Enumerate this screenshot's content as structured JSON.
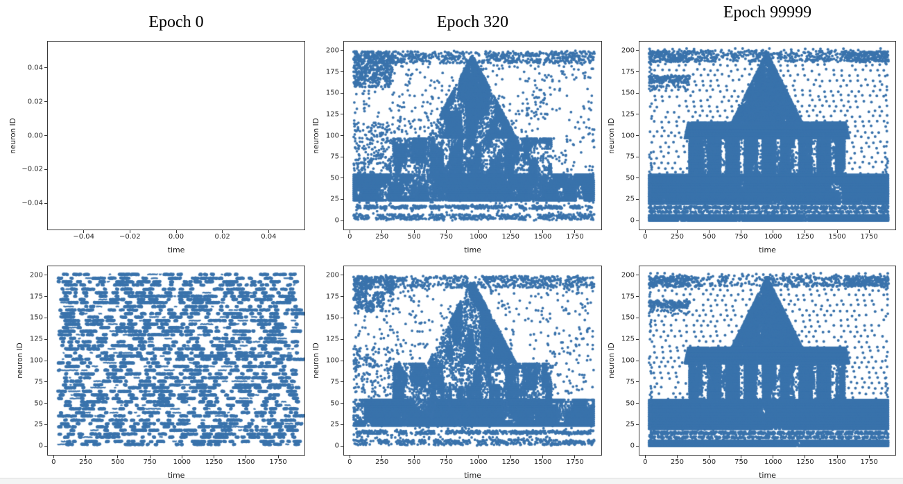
{
  "figure": {
    "background": "#ffffff",
    "spine_color": "#3a3a3a",
    "tick_color": "#262626",
    "title_color": "#000000",
    "bottom_bar": {
      "fill": "#f3f4f4",
      "border": "#dcdddd"
    }
  },
  "chart_data": {
    "type": "scatter",
    "figure_kind": "spiking-network raster plots (neuron spikes over time)",
    "grid": {
      "rows": 2,
      "cols": 3
    },
    "column_titles": [
      "Epoch 0",
      "Epoch 320",
      "Epoch 99999"
    ],
    "point_color": "#3a73ac",
    "x_axis_label": "time",
    "y_axis_label": "neuron ID",
    "subplots": [
      {
        "id": "row1-col1",
        "title": "Epoch 0",
        "xlabel": "time",
        "ylabel": "neuron ID",
        "xlim": [
          -0.0555,
          0.0555
        ],
        "ylim": [
          -0.0555,
          0.0555
        ],
        "xticks": [
          {
            "v": -0.04,
            "label": "−0.04"
          },
          {
            "v": -0.02,
            "label": "−0.02"
          },
          {
            "v": 0,
            "label": "0.00"
          },
          {
            "v": 0.02,
            "label": "0.02"
          },
          {
            "v": 0.04,
            "label": "0.04"
          }
        ],
        "yticks": [
          {
            "v": 0.04,
            "label": "0.04"
          },
          {
            "v": 0.02,
            "label": "0.02"
          },
          {
            "v": 0,
            "label": "0.00"
          },
          {
            "v": -0.02,
            "label": "−0.02"
          },
          {
            "v": -0.04,
            "label": "−0.04"
          }
        ],
        "pattern": "empty",
        "seed": 1,
        "content": "empty axes, no spikes plotted (default matplotlib limits)"
      },
      {
        "id": "row1-col2",
        "title": "Epoch 320",
        "xlabel": "time",
        "ylabel": "neuron ID",
        "xlim": [
          -45,
          1955
        ],
        "ylim": [
          -10.5,
          210.5
        ],
        "xticks": [
          {
            "v": 0,
            "label": "0"
          },
          {
            "v": 250,
            "label": "250"
          },
          {
            "v": 500,
            "label": "500"
          },
          {
            "v": 750,
            "label": "750"
          },
          {
            "v": 1000,
            "label": "1000"
          },
          {
            "v": 1250,
            "label": "1250"
          },
          {
            "v": 1500,
            "label": "1500"
          },
          {
            "v": 1750,
            "label": "1750"
          }
        ],
        "yticks": [
          {
            "v": 0,
            "label": "0"
          },
          {
            "v": 25,
            "label": "25"
          },
          {
            "v": 50,
            "label": "50"
          },
          {
            "v": 75,
            "label": "75"
          },
          {
            "v": 100,
            "label": "100"
          },
          {
            "v": 125,
            "label": "125"
          },
          {
            "v": 150,
            "label": "150"
          },
          {
            "v": 175,
            "label": "175"
          },
          {
            "v": 200,
            "label": "200"
          }
        ],
        "pattern": "temple-soft",
        "seed": 7,
        "bg_points": 1300,
        "content": "diffuse spike cloud: triangular temple silhouette emerging, dense base band, noisy background"
      },
      {
        "id": "row1-col3",
        "title": "Epoch 99999",
        "xlabel": "time",
        "ylabel": "neuron ID",
        "xlim": [
          -45,
          1955
        ],
        "ylim": [
          -10.5,
          210.5
        ],
        "xticks": [
          {
            "v": 0,
            "label": "0"
          },
          {
            "v": 250,
            "label": "250"
          },
          {
            "v": 500,
            "label": "500"
          },
          {
            "v": 750,
            "label": "750"
          },
          {
            "v": 1000,
            "label": "1000"
          },
          {
            "v": 1250,
            "label": "1250"
          },
          {
            "v": 1500,
            "label": "1500"
          },
          {
            "v": 1750,
            "label": "1750"
          }
        ],
        "yticks": [
          {
            "v": 0,
            "label": "0"
          },
          {
            "v": 25,
            "label": "25"
          },
          {
            "v": 50,
            "label": "50"
          },
          {
            "v": 75,
            "label": "75"
          },
          {
            "v": 100,
            "label": "100"
          },
          {
            "v": 125,
            "label": "125"
          },
          {
            "v": 150,
            "label": "150"
          },
          {
            "v": 175,
            "label": "175"
          },
          {
            "v": 200,
            "label": "200"
          }
        ],
        "pattern": "temple-sharp",
        "seed": 11,
        "bg_density": 0.84,
        "content": "sharp temple image: dome with finial, eave band, columns, dense base, regular dotted background"
      },
      {
        "id": "row2-col1",
        "title": "",
        "xlabel": "time",
        "ylabel": "neuron ID",
        "xlim": [
          -45,
          1955
        ],
        "ylim": [
          -10.5,
          210.5
        ],
        "xticks": [
          {
            "v": 0,
            "label": "0"
          },
          {
            "v": 250,
            "label": "250"
          },
          {
            "v": 500,
            "label": "500"
          },
          {
            "v": 750,
            "label": "750"
          },
          {
            "v": 1000,
            "label": "1000"
          },
          {
            "v": 1250,
            "label": "1250"
          },
          {
            "v": 1500,
            "label": "1500"
          },
          {
            "v": 1750,
            "label": "1750"
          }
        ],
        "yticks": [
          {
            "v": 0,
            "label": "0"
          },
          {
            "v": 25,
            "label": "25"
          },
          {
            "v": 50,
            "label": "50"
          },
          {
            "v": 75,
            "label": "75"
          },
          {
            "v": 100,
            "label": "100"
          },
          {
            "v": 125,
            "label": "125"
          },
          {
            "v": 150,
            "label": "150"
          },
          {
            "v": 175,
            "label": "175"
          },
          {
            "v": 200,
            "label": "200"
          }
        ],
        "pattern": "random-rows",
        "seed": 3,
        "content": "uniform random spike trains: horizontal dash segments across all ~200 neurons"
      },
      {
        "id": "row2-col2",
        "title": "",
        "xlabel": "time",
        "ylabel": "neuron ID",
        "xlim": [
          -45,
          1955
        ],
        "ylim": [
          -10.5,
          210.5
        ],
        "xticks": [
          {
            "v": 0,
            "label": "0"
          },
          {
            "v": 250,
            "label": "250"
          },
          {
            "v": 500,
            "label": "500"
          },
          {
            "v": 750,
            "label": "750"
          },
          {
            "v": 1000,
            "label": "1000"
          },
          {
            "v": 1250,
            "label": "1250"
          },
          {
            "v": 1500,
            "label": "1500"
          },
          {
            "v": 1750,
            "label": "1750"
          }
        ],
        "yticks": [
          {
            "v": 0,
            "label": "0"
          },
          {
            "v": 25,
            "label": "25"
          },
          {
            "v": 50,
            "label": "50"
          },
          {
            "v": 75,
            "label": "75"
          },
          {
            "v": 100,
            "label": "100"
          },
          {
            "v": 125,
            "label": "125"
          },
          {
            "v": 150,
            "label": "150"
          },
          {
            "v": 175,
            "label": "175"
          },
          {
            "v": 200,
            "label": "200"
          }
        ],
        "pattern": "temple-soft",
        "seed": 23,
        "bg_points": 1150,
        "content": "diffuse triangular temple silhouette with noisy background (sampled spikes)"
      },
      {
        "id": "row2-col3",
        "title": "",
        "xlabel": "time",
        "ylabel": "neuron ID",
        "xlim": [
          -45,
          1955
        ],
        "ylim": [
          -10.5,
          210.5
        ],
        "xticks": [
          {
            "v": 0,
            "label": "0"
          },
          {
            "v": 250,
            "label": "250"
          },
          {
            "v": 500,
            "label": "500"
          },
          {
            "v": 750,
            "label": "750"
          },
          {
            "v": 1000,
            "label": "1000"
          },
          {
            "v": 1250,
            "label": "1250"
          },
          {
            "v": 1500,
            "label": "1500"
          },
          {
            "v": 1750,
            "label": "1750"
          }
        ],
        "yticks": [
          {
            "v": 0,
            "label": "0"
          },
          {
            "v": 25,
            "label": "25"
          },
          {
            "v": 50,
            "label": "50"
          },
          {
            "v": 75,
            "label": "75"
          },
          {
            "v": 100,
            "label": "100"
          },
          {
            "v": 125,
            "label": "125"
          },
          {
            "v": 150,
            "label": "150"
          },
          {
            "v": 175,
            "label": "175"
          },
          {
            "v": 200,
            "label": "200"
          }
        ],
        "pattern": "temple-sharp",
        "seed": 37,
        "bg_density": 0.78,
        "content": "sharp temple image, slightly noisier sampling than top row"
      }
    ]
  }
}
